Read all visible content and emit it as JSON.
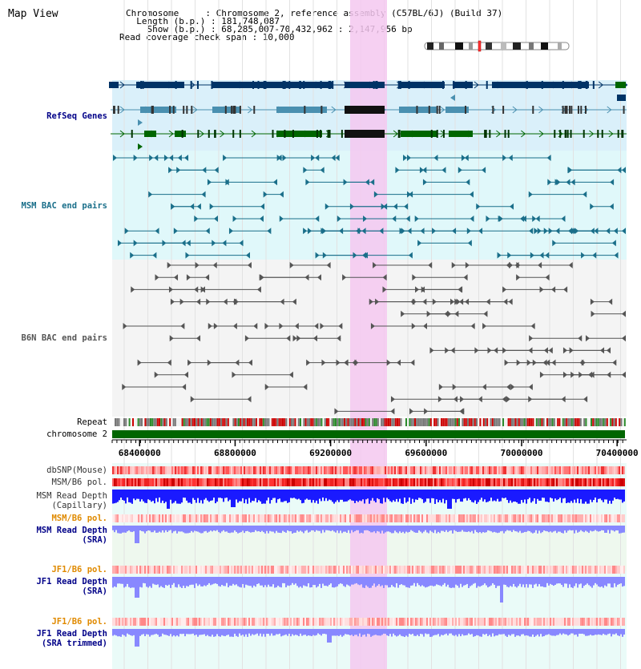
{
  "view": {
    "title": "Map View"
  },
  "info": {
    "chromosome": "Chromosome     : Chromosome 2, reference assembly (C57BL/6J) (Build 37)",
    "length": "  Length (b.p.) : 181,748,087",
    "show": "    Show (b.p.) : 68,285,007-70,432,962 : 2,147,956 bp",
    "coverage": "Read coverage check span : 10,000"
  },
  "labels": {
    "refseq": "RefSeq Genes",
    "msm_bac": "MSM BAC end pairs",
    "b6n_bac": "B6N BAC end pairs",
    "repeat": "Repeat",
    "chrom": "chromosome 2",
    "dbsnp": "dbSNP(Mouse)",
    "msm_b6_pol": "MSM/B6 pol.",
    "msm_depth_cap_1": "MSM Read Depth",
    "msm_depth_cap_2": "(Capillary)",
    "msm_b6_pol2": "MSM/B6 pol.",
    "msm_depth_sra_1": "MSM Read Depth",
    "msm_depth_sra_2": "(SRA)",
    "jf1_b6_pol": "JF1/B6 pol.",
    "jf1_depth_1": "JF1 Read Depth",
    "jf1_depth_2": "(SRA)",
    "jf1_b6_pol2": "JF1/B6 pol.",
    "jf1_trim_1": "JF1 Read Depth",
    "jf1_trim_2": "(SRA trimmed)"
  },
  "axis": {
    "ticks": [
      "68400000",
      "68800000",
      "69200000",
      "69600000",
      "70000000",
      "70400000"
    ],
    "tick_values": [
      68400000,
      68800000,
      69200000,
      69600000,
      70000000,
      70400000
    ]
  },
  "region": {
    "start": 68285007,
    "end": 70432962,
    "highlight_start": 69220000,
    "highlight_end": 69370000
  },
  "colors": {
    "refseq_bg": "#daf0fa",
    "msm_bg": "#e0f8fa",
    "gene_navy": "#003366",
    "gene_blue": "#4a90b0",
    "gene_green": "#006600",
    "highlight": "#f5c8f0",
    "msm_bac": "#1a6f8a",
    "b6n_bac": "#555555",
    "chrom": "#006600",
    "depth_dark": "#1a1aff",
    "depth_light": "#8888ff",
    "pol_label": "#e08a00",
    "depth_label": "#000088"
  }
}
